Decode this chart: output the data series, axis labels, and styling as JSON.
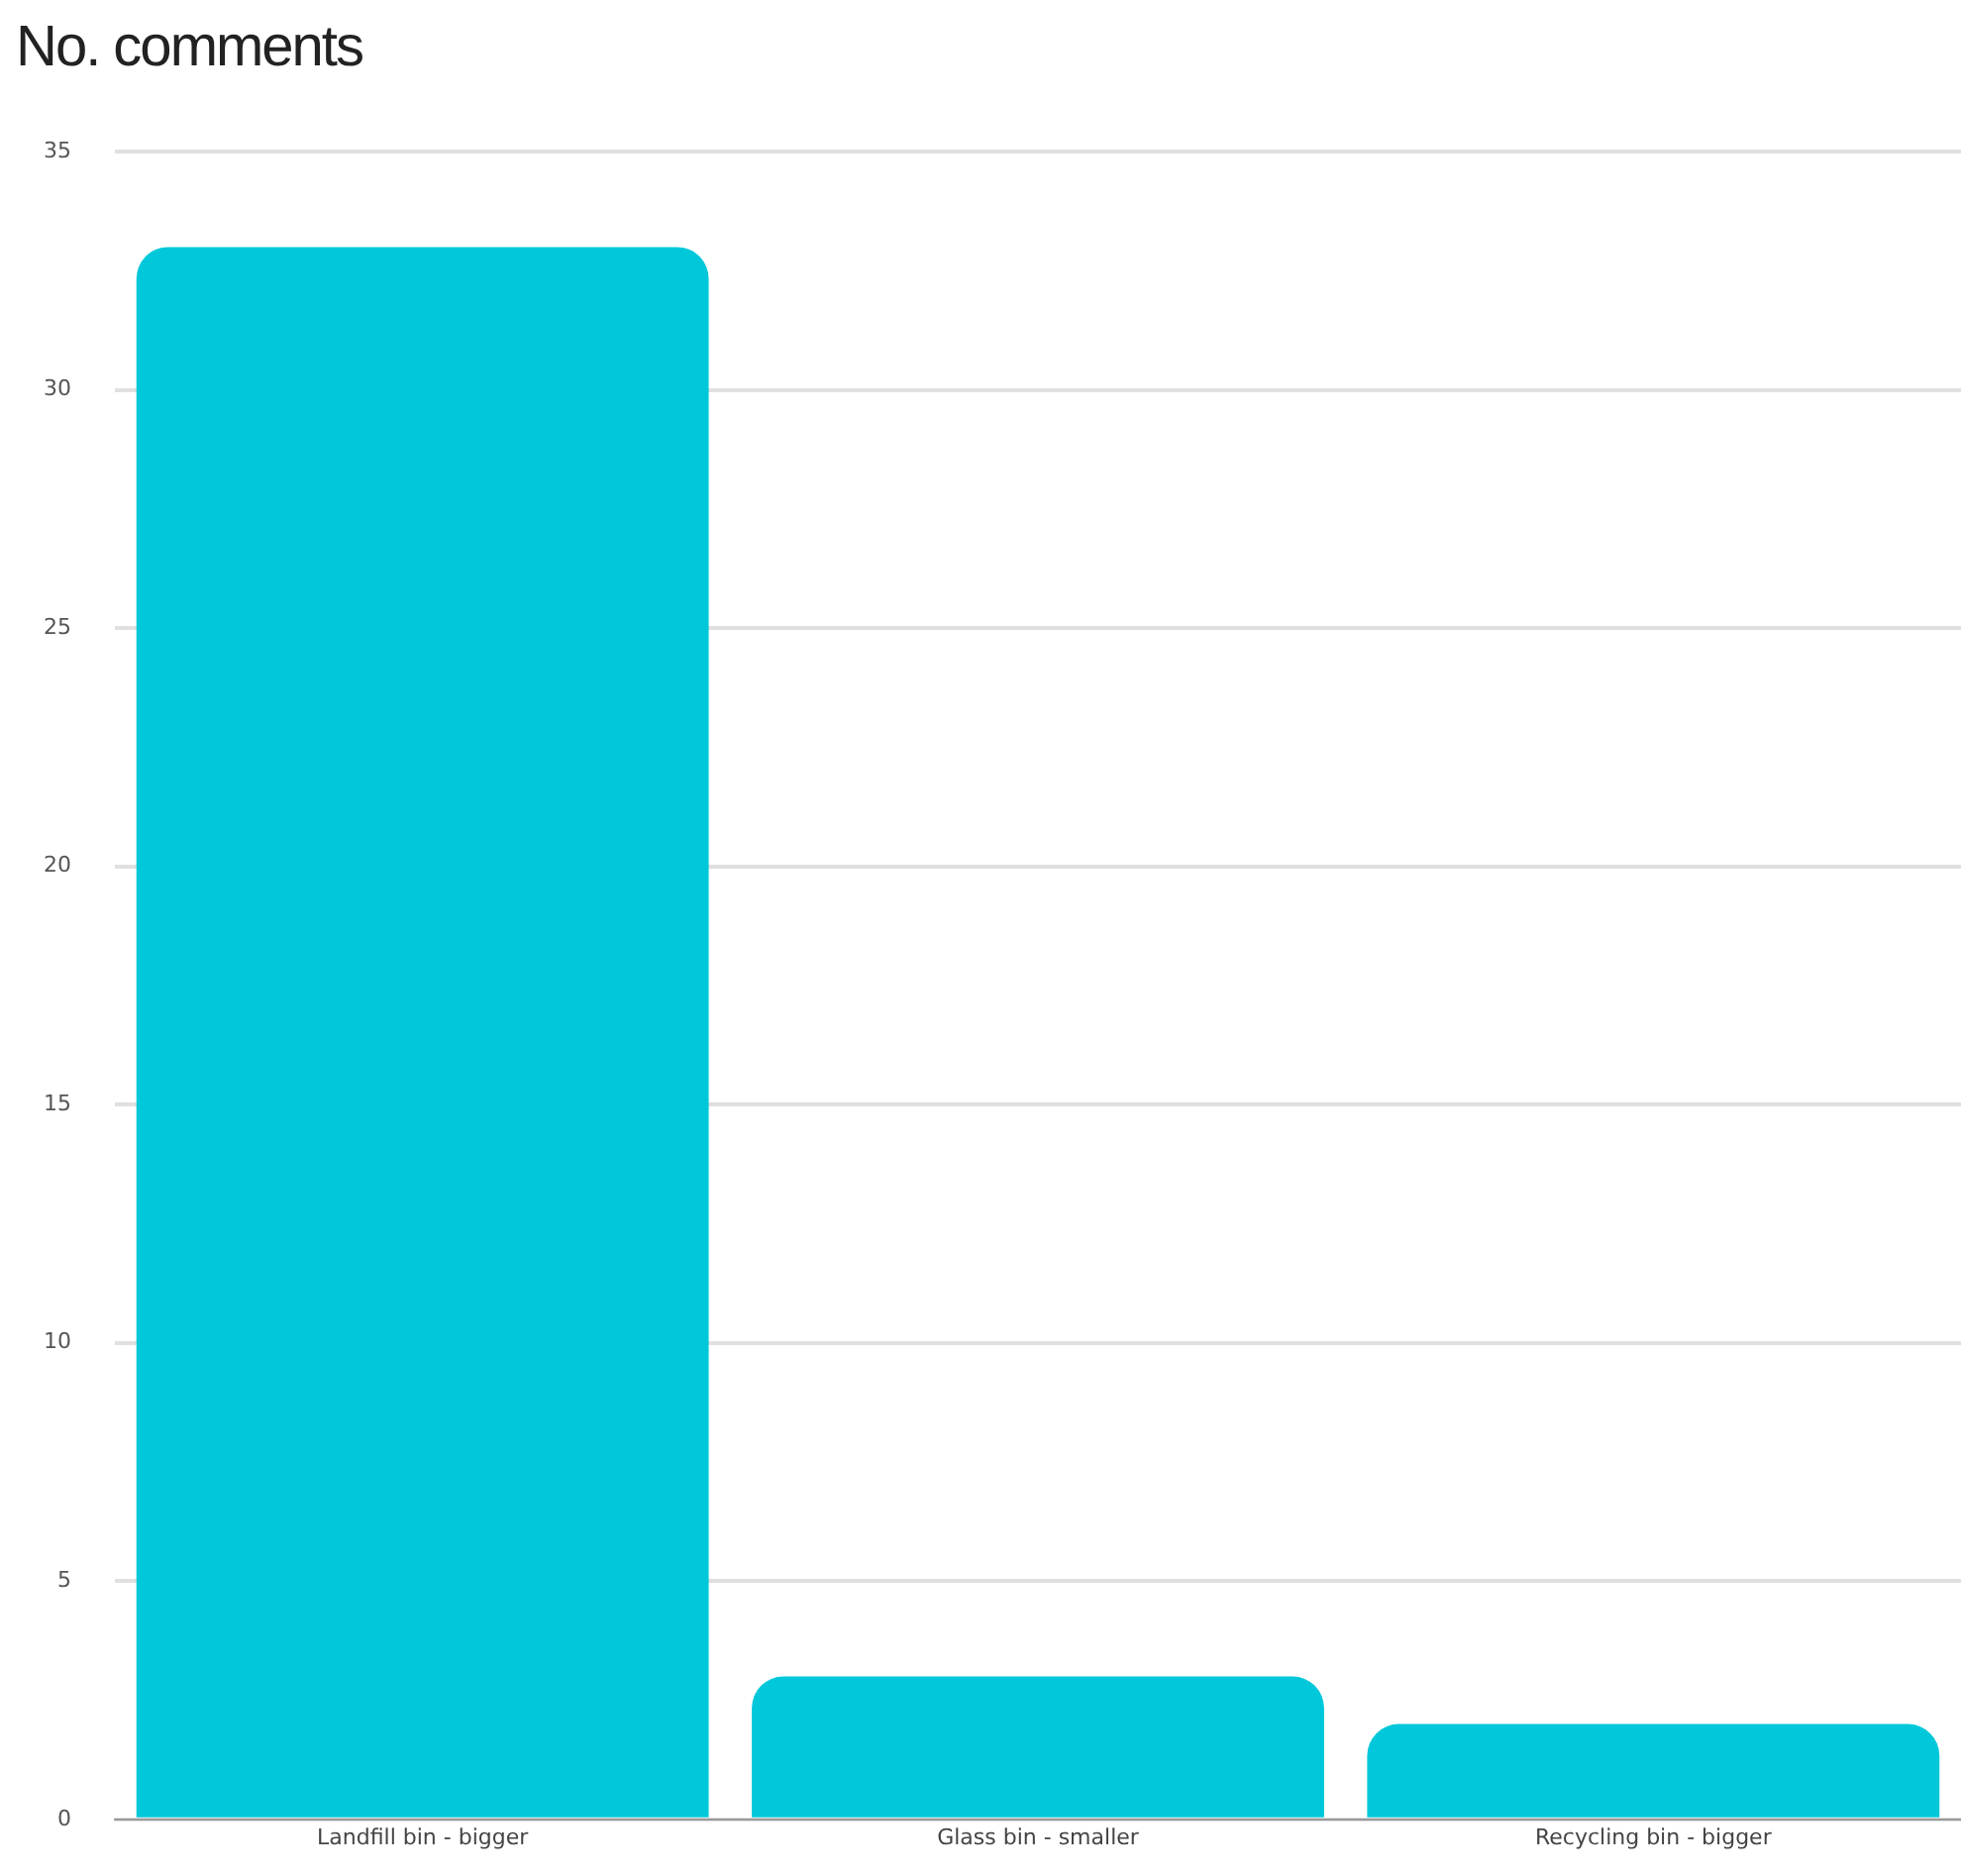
{
  "chart_data": {
    "type": "bar",
    "title": "No. comments",
    "categories": [
      "Landfill bin - bigger",
      "Glass bin - smaller",
      "Recycling bin - bigger"
    ],
    "values": [
      33,
      3,
      2
    ],
    "color": "#00c8da",
    "ylim": [
      0,
      35
    ],
    "yticks": [
      0,
      5,
      10,
      15,
      20,
      25,
      30,
      35
    ],
    "grid": "y"
  }
}
